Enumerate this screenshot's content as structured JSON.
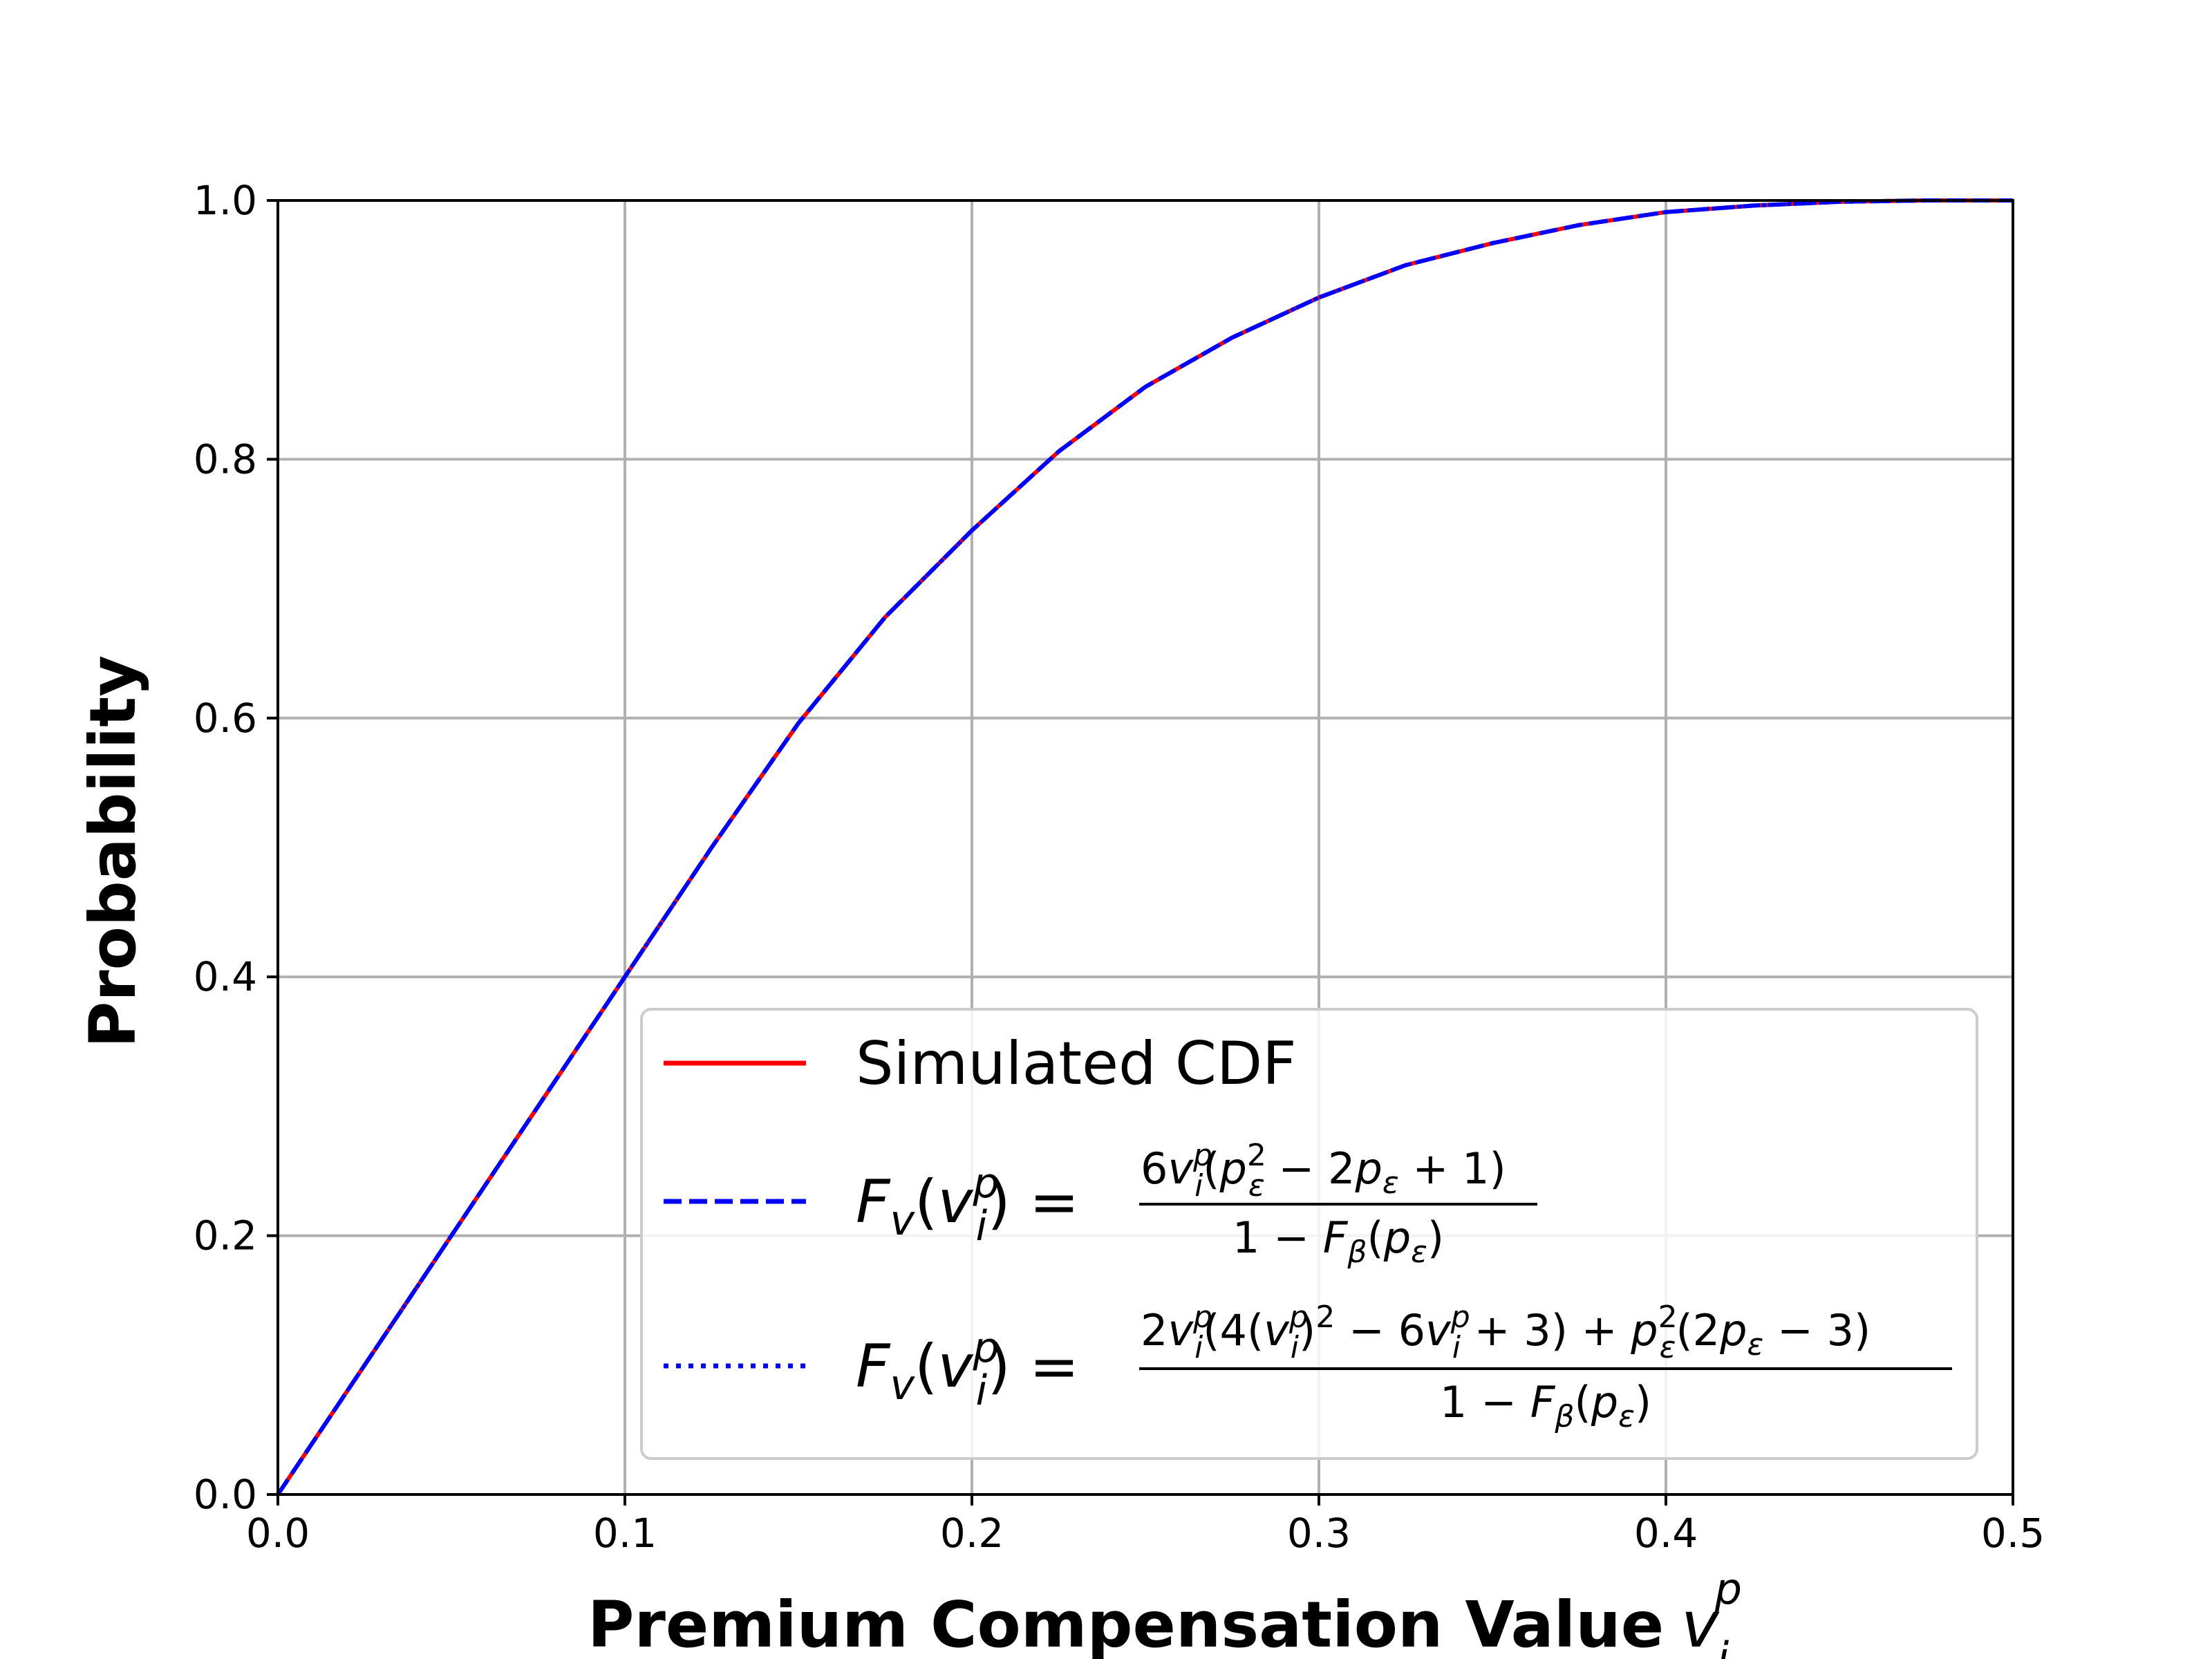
{
  "chart_data": {
    "type": "line",
    "xlabel": "Premium Compensation Value",
    "xlabel_symbol": "v",
    "xlabel_sup": "p",
    "xlabel_sub": "i",
    "ylabel": "Probability",
    "xlim": [
      0.0,
      0.5
    ],
    "ylim": [
      0.0,
      1.0
    ],
    "x_ticks": [
      "0.0",
      "0.1",
      "0.2",
      "0.3",
      "0.4",
      "0.5"
    ],
    "y_ticks": [
      "0.0",
      "0.2",
      "0.4",
      "0.6",
      "0.8",
      "1.0"
    ],
    "grid": true,
    "legend_position": "lower-right",
    "x": [
      0.0,
      0.025,
      0.05,
      0.075,
      0.1,
      0.125,
      0.15,
      0.175,
      0.2,
      0.225,
      0.25,
      0.275,
      0.3,
      0.325,
      0.35,
      0.375,
      0.4,
      0.425,
      0.45,
      0.475,
      0.5
    ],
    "series": [
      {
        "name": "Simulated CDF",
        "color": "#ff0000",
        "style": "solid",
        "values": [
          0.0,
          0.1,
          0.2,
          0.3,
          0.4,
          0.5,
          0.596,
          0.678,
          0.745,
          0.806,
          0.856,
          0.894,
          0.925,
          0.95,
          0.967,
          0.981,
          0.991,
          0.996,
          0.999,
          1.0,
          1.0
        ]
      },
      {
        "name": "F_v(v_i^p) = 6v_i^p(p_ε^2 − 2p_ε + 1) / (1 − F_β(p_ε))",
        "color": "#0000ff",
        "style": "dashed",
        "values": [
          0.0,
          0.1,
          0.2,
          0.3,
          0.4,
          0.5,
          0.596,
          0.678,
          0.745,
          0.806,
          0.856,
          0.894,
          0.925,
          0.95,
          0.967,
          0.981,
          0.991,
          0.996,
          0.999,
          1.0,
          1.0
        ]
      },
      {
        "name": "F_v(v_i^p) = (2v_i^p(4(v_i^p)^2 − 6v_i^p + 3) + p_ε^2(2p_ε − 3)) / (1 − F_β(p_ε))",
        "color": "#0000ff",
        "style": "dotted",
        "values": [
          0.0,
          0.1,
          0.2,
          0.3,
          0.4,
          0.5,
          0.596,
          0.678,
          0.745,
          0.806,
          0.856,
          0.894,
          0.925,
          0.95,
          0.967,
          0.981,
          0.991,
          0.996,
          0.999,
          1.0,
          1.0
        ]
      }
    ]
  },
  "legend": {
    "label_1": "Simulated CDF"
  }
}
